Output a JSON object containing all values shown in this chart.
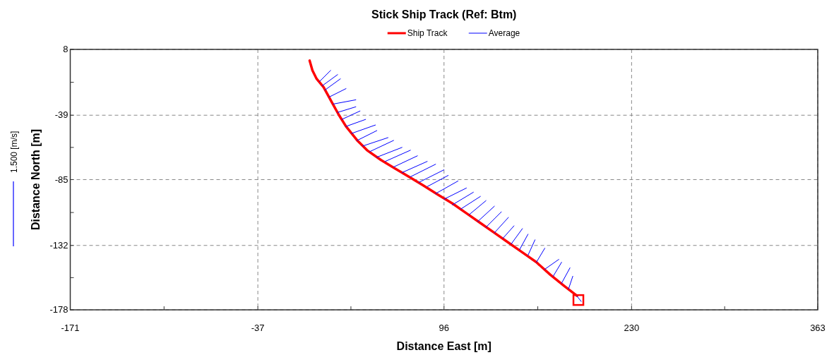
{
  "chart_data": {
    "type": "line",
    "title": "Stick Ship Track (Ref: Btm)",
    "xlabel": "Distance East [m]",
    "ylabel": "Distance North [m]",
    "annotations": [
      "1.500 [m/s]"
    ],
    "xlim": [
      -171,
      363
    ],
    "ylim": [
      -178,
      8
    ],
    "xticks": [
      -171,
      {
        "value": -104,
        "label": null
      },
      -37,
      {
        "value": 29.5,
        "label": null
      },
      96,
      {
        "value": 163,
        "label": null
      },
      230,
      {
        "value": 296.5,
        "label": null
      },
      363
    ],
    "yticks": [
      8,
      {
        "value": -15.5,
        "label": null
      },
      -39,
      {
        "value": -62,
        "label": null
      },
      -85,
      {
        "value": -108.5,
        "label": null
      },
      -132,
      {
        "value": -155,
        "label": null
      },
      -178
    ],
    "grid": true,
    "legend": "top",
    "line_style": "solid",
    "marker": "none",
    "series": [
      {
        "name": "Ship Track",
        "color": "#ff0000",
        "x": [
          0,
          2,
          5,
          10,
          16,
          21,
          26,
          34,
          41,
          51,
          61,
          71,
          81,
          92,
          102,
          112,
          122,
          132,
          142,
          152,
          162,
          172,
          182,
          191
        ],
        "values": [
          0,
          -7,
          -13,
          -19,
          -30,
          -39,
          -47,
          -57,
          -64,
          -71,
          -77,
          -83,
          -89,
          -96,
          -102,
          -109,
          -116,
          -123,
          -130,
          -137,
          -144,
          -153,
          -161,
          -168
        ]
      },
      {
        "name": "Average",
        "color": "#0000ff",
        "x": [
          7,
          15,
          null,
          9,
          20,
          null,
          11,
          22,
          null,
          14,
          26,
          null,
          17,
          33,
          null,
          20,
          33,
          null,
          23,
          36,
          null,
          26,
          40,
          null,
          30,
          47,
          null,
          34,
          48,
          null,
          38,
          56,
          null,
          43,
          60,
          null,
          48,
          66,
          null,
          54,
          72,
          null,
          60,
          77,
          null,
          66,
          84,
          null,
          72,
          90,
          null,
          78,
          96,
          null,
          84,
          99,
          null,
          90,
          106,
          null,
          96,
          112,
          null,
          102,
          117,
          null,
          108,
          122,
          null,
          114,
          126,
          null,
          120,
          132,
          null,
          126,
          137,
          null,
          132,
          142,
          null,
          138,
          146,
          null,
          144,
          152,
          null,
          150,
          156,
          null,
          156,
          161,
          null,
          162,
          168,
          null,
          168,
          178,
          null,
          174,
          180,
          null,
          180,
          186,
          null,
          185,
          188,
          null,
          190,
          194
        ],
        "values": [
          -15,
          -7,
          null,
          -18,
          -10,
          null,
          -21,
          -13,
          null,
          -26,
          -20,
          null,
          -31,
          -28,
          null,
          -37,
          -33,
          null,
          -42,
          -36,
          null,
          -47,
          -42,
          null,
          -52,
          -46,
          null,
          -57,
          -50,
          null,
          -61,
          -55,
          null,
          -65,
          -57,
          null,
          -69,
          -62,
          null,
          -72,
          -64,
          null,
          -76,
          -68,
          null,
          -80,
          -72,
          null,
          -83,
          -74,
          null,
          -87,
          -78,
          null,
          -90,
          -82,
          null,
          -95,
          -86,
          null,
          -99,
          -91,
          null,
          -103,
          -94,
          null,
          -106,
          -97,
          null,
          -110,
          -100,
          null,
          -115,
          -104,
          null,
          -119,
          -108,
          null,
          -123,
          -112,
          null,
          -127,
          -118,
          null,
          -131,
          -120,
          null,
          -135,
          -124,
          null,
          -139,
          -128,
          null,
          -144,
          -134,
          null,
          -149,
          -142,
          null,
          -154,
          -144,
          null,
          -159,
          -148,
          null,
          -163,
          -154,
          null,
          -167,
          -172
        ]
      },
      {
        "type": "scatter",
        "marker": "square",
        "color": "#ff0000",
        "x": [
          192
        ],
        "values": [
          -171
        ]
      }
    ]
  }
}
